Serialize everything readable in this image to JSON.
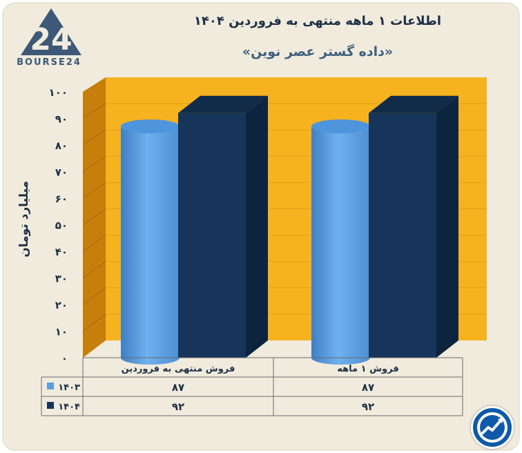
{
  "header": {
    "title": "اطلاعات ۱ ماهه منتهی به فروردین ۱۴۰۴",
    "subtitle": "«داده گستر عصر نوین»"
  },
  "brand": {
    "logo_text": "BOURSE24",
    "logo_icon": "bourse24-logo-icon",
    "corner_icon": "trend-arrow-icon"
  },
  "colors": {
    "frame_bg": "#f0ebdc",
    "wall": "#f6b21f",
    "side_wall": "#c67f0b",
    "series_1403": "#5a9ee0",
    "series_1404": "#17355a"
  },
  "chart_data": {
    "type": "bar",
    "ylabel": "میلیارد تومان",
    "ylim": [
      0,
      100
    ],
    "yticks": [
      "0",
      "10",
      "20",
      "30",
      "40",
      "50",
      "60",
      "70",
      "80",
      "90",
      "100"
    ],
    "categories": [
      "فروش منتهی به  فروردین",
      "فروش ۱ ماهه"
    ],
    "series": [
      {
        "name": "۱۴۰۳",
        "values": [
          87,
          87
        ],
        "labels": [
          "۸۷",
          "۸۷"
        ],
        "shape": "cylinder"
      },
      {
        "name": "۱۴۰۴",
        "values": [
          92,
          92
        ],
        "labels": [
          "۹۲",
          "۹۲"
        ],
        "shape": "box"
      }
    ],
    "grid": true,
    "legend": "data-table-left"
  }
}
